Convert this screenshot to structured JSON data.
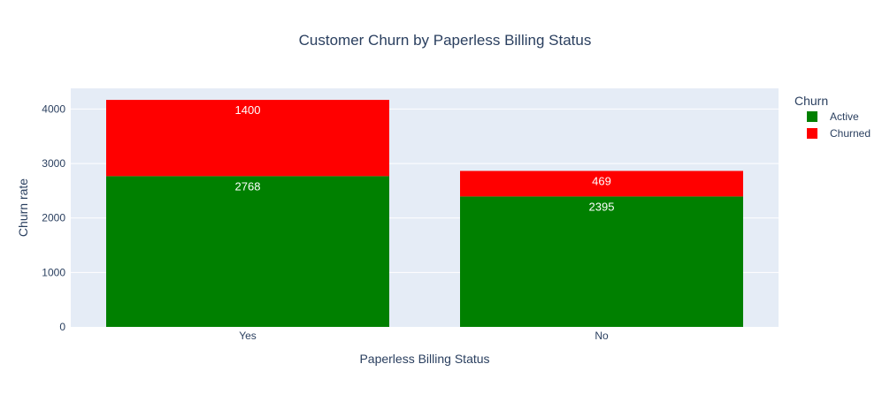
{
  "chart_data": {
    "type": "bar",
    "barmode": "stack",
    "title": "Customer Churn by Paperless Billing Status",
    "xlabel": "Paperless Billing Status",
    "ylabel": "Churn rate",
    "categories": [
      "Yes",
      "No"
    ],
    "ylim": [
      0,
      4380
    ],
    "yticks": [
      0,
      1000,
      2000,
      3000,
      4000
    ],
    "grid": true,
    "legend": {
      "title": "Churn",
      "position": "top-right"
    },
    "series": [
      {
        "name": "Active",
        "values": [
          2768,
          2395
        ],
        "color": "#008000"
      },
      {
        "name": "Churned",
        "values": [
          1400,
          469
        ],
        "color": "#ff0000"
      }
    ]
  },
  "colors": {
    "plot_background": "#e5ecf6",
    "gridline": "#ffffff",
    "title_text": "#2a3f5f",
    "axis_text": "#2a3f5f",
    "data_label_text": "#ffffff"
  }
}
